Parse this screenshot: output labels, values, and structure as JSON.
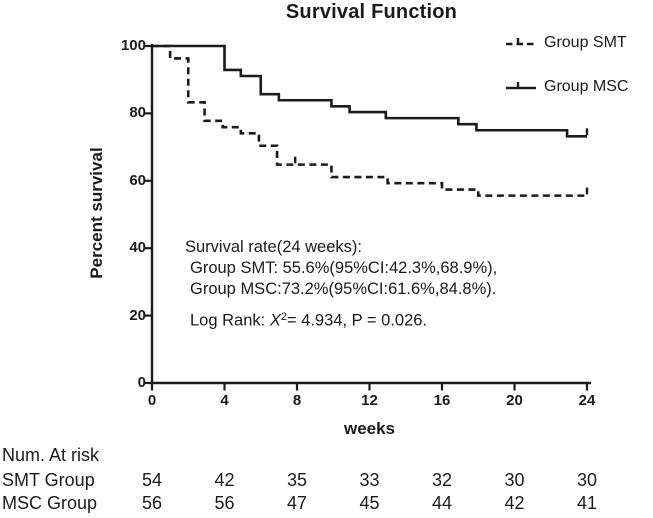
{
  "title": "Survival Function",
  "colors": {
    "ink": "#1b1b1b",
    "background": "#ffffff"
  },
  "legend": {
    "items": [
      {
        "label": "Group SMT",
        "style": "dashed"
      },
      {
        "label": "Group MSC",
        "style": "solid"
      }
    ]
  },
  "annotation": {
    "line1": "Survival rate(24 weeks):",
    "line2": "Group SMT: 55.6%(95%CI:42.3%,68.9%),",
    "line3": "Group MSC:73.2%(95%CI:61.6%,84.8%).",
    "line4_prefix": "Log Rank: ",
    "line4_chi": "X",
    "line4_sup": "2",
    "line4_rest": "= 4.934, P = 0.026."
  },
  "risk_table": {
    "title": "Num. At risk",
    "rows": [
      {
        "label": "SMT Group",
        "values": [
          "54",
          "42",
          "35",
          "33",
          "32",
          "30",
          "30"
        ]
      },
      {
        "label": "MSC Group",
        "values": [
          "56",
          "56",
          "47",
          "45",
          "44",
          "42",
          "41"
        ]
      }
    ]
  },
  "chart_data": {
    "type": "line",
    "subtype": "kaplan-meier-step",
    "title": "Survival Function",
    "xlabel": "weeks",
    "ylabel": "Percent survival",
    "xlim": [
      0,
      24
    ],
    "ylim": [
      0,
      100
    ],
    "xticks": [
      0,
      4,
      8,
      12,
      16,
      20,
      24
    ],
    "yticks": [
      0,
      20,
      40,
      60,
      80,
      100
    ],
    "grid": false,
    "legend_position": "upper right",
    "series": [
      {
        "name": "Group SMT",
        "style": "dashed",
        "survival_at_24_weeks": "55.6%",
        "ci_95": [
          "42.3%",
          "68.9%"
        ],
        "steps": [
          [
            0,
            100
          ],
          [
            1,
            96.3
          ],
          [
            2,
            83.3
          ],
          [
            2.9,
            77.8
          ],
          [
            3.9,
            75.9
          ],
          [
            4.9,
            74.1
          ],
          [
            5.9,
            70.4
          ],
          [
            6.9,
            64.8
          ],
          [
            9.9,
            61.1
          ],
          [
            13,
            59.3
          ],
          [
            16,
            57.4
          ],
          [
            18,
            55.6
          ],
          [
            24,
            55.6
          ]
        ],
        "censor_ticks": [
          [
            7.9,
            64.8
          ],
          [
            24,
            55.6
          ]
        ]
      },
      {
        "name": "Group MSC",
        "style": "solid",
        "survival_at_24_weeks": "73.2%",
        "ci_95": [
          "61.6%",
          "84.8%"
        ],
        "steps": [
          [
            0,
            100
          ],
          [
            4,
            92.9
          ],
          [
            4.9,
            91.1
          ],
          [
            6,
            85.7
          ],
          [
            7,
            83.9
          ],
          [
            9.9,
            82.1
          ],
          [
            10.9,
            80.4
          ],
          [
            12.9,
            78.6
          ],
          [
            16.9,
            76.8
          ],
          [
            17.9,
            75
          ],
          [
            22.9,
            73.2
          ],
          [
            24,
            73.2
          ]
        ],
        "censor_ticks": [
          [
            24,
            73.2
          ]
        ]
      }
    ],
    "stats": {
      "log_rank_chi2": 4.934,
      "p_value": 0.026
    }
  }
}
